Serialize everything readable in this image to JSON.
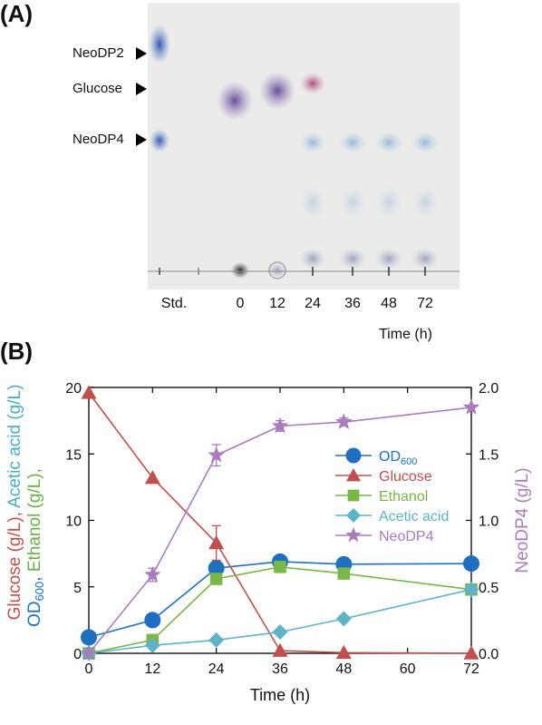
{
  "panel_a": {
    "label": "(A)",
    "markers": [
      "NeoDP2",
      "Glucose",
      "NeoDP4"
    ],
    "lanes": [
      "Std.",
      "0",
      "12",
      "24",
      "36",
      "48",
      "72"
    ],
    "x_axis_label": "Time (h)"
  },
  "panel_b": {
    "label": "(B)"
  },
  "chart_data": {
    "type": "line",
    "x": [
      0,
      12,
      24,
      36,
      48,
      72
    ],
    "xlabel": "Time (h)",
    "xticks": [
      "0",
      "12",
      "24",
      "36",
      "48",
      "60",
      "72"
    ],
    "xlim": [
      0,
      72
    ],
    "ylim": [
      0,
      20
    ],
    "y2lim": [
      0,
      2.0
    ],
    "yticks": [
      "0",
      "5",
      "10",
      "15",
      "20"
    ],
    "y2ticks": [
      "0.0",
      "0.5",
      "1.0",
      "1.5",
      "2.0"
    ],
    "ylabel_parts": [
      {
        "text": "OD",
        "sub": "600",
        "after": ",",
        "color": "#1f6fc0"
      },
      {
        "text": "Ethanol (g/L),",
        "color": "#6ab04c"
      },
      {
        "text": "Glucose (g/L),",
        "color": "#c0504d"
      },
      {
        "text": "Acetic acid (g/L)",
        "color": "#4bacc6"
      }
    ],
    "y2label": "NeoDP4 (g/L)",
    "y2label_color": "#a97cc0",
    "legend_position": "right-middle",
    "series": [
      {
        "name": "OD",
        "name_sub": "600",
        "axis": "left",
        "marker": "circle",
        "color": "#1f6fc0",
        "values": [
          1.2,
          2.5,
          6.4,
          6.9,
          6.7,
          6.75
        ]
      },
      {
        "name": "Glucose",
        "axis": "left",
        "marker": "triangle",
        "color": "#c0504d",
        "values": [
          19.6,
          13.2,
          8.3,
          0.2,
          0.05,
          0.0
        ],
        "errors": [
          0,
          0,
          1.3,
          0,
          0,
          0
        ]
      },
      {
        "name": "Ethanol",
        "axis": "left",
        "marker": "square",
        "color": "#7ab648",
        "values": [
          0.0,
          1.0,
          5.6,
          6.5,
          6.0,
          4.8
        ]
      },
      {
        "name": "Acetic acid",
        "axis": "left",
        "marker": "diamond",
        "color": "#5fb3c8",
        "values": [
          0.0,
          0.6,
          1.0,
          1.6,
          2.6,
          4.8
        ]
      },
      {
        "name": "NeoDP4",
        "axis": "right",
        "marker": "star",
        "color": "#a97cc0",
        "values": [
          0.0,
          0.59,
          1.49,
          1.71,
          1.74,
          1.85
        ],
        "errors": [
          0,
          0.05,
          0.08,
          0.04,
          0.03,
          0
        ]
      }
    ]
  }
}
